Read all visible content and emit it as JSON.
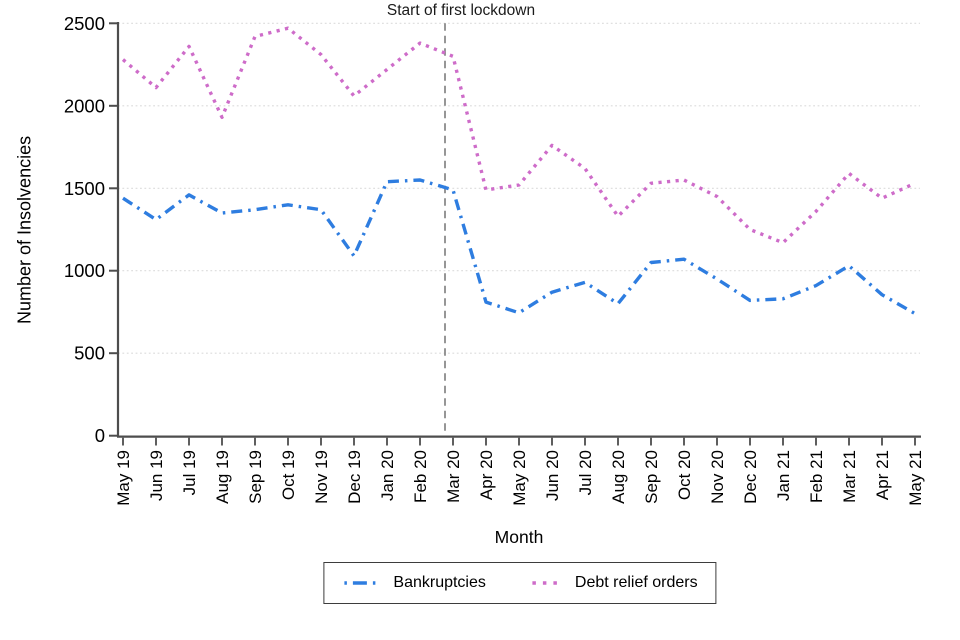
{
  "annotation": {
    "lockdown_label": "Start of first lockdown"
  },
  "axes": {
    "y_title": "Number of Insolvencies",
    "x_title": "Month"
  },
  "legend": {
    "items": [
      {
        "label": "Bankruptcies",
        "color": "#2E7DE0",
        "line_style": "dash-dot"
      },
      {
        "label": "Debt relief orders",
        "color": "#CE6CC9",
        "line_style": "dotted"
      }
    ]
  },
  "chart_data": {
    "type": "line",
    "title": "",
    "xlabel": "Month",
    "ylabel": "Number of Insolvencies",
    "ylim": [
      0,
      2500
    ],
    "y_ticks": [
      0,
      500,
      1000,
      1500,
      2000,
      2500
    ],
    "grid": "horizontal dotted gridlines",
    "legend_position": "bottom-center boxed",
    "x_categories": [
      "May 19",
      "Jun 19",
      "Jul 19",
      "Aug 19",
      "Sep 19",
      "Oct 19",
      "Nov 19",
      "Dec 19",
      "Jan 20",
      "Feb 20",
      "Mar 20",
      "Apr 20",
      "May 20",
      "Jun 20",
      "Jul 20",
      "Aug 20",
      "Sep 20",
      "Oct 20",
      "Nov 20",
      "Dec 20",
      "Jan 21",
      "Feb 21",
      "Mar 21",
      "Apr 21",
      "May 21"
    ],
    "series": [
      {
        "name": "Bankruptcies",
        "color": "#2E7DE0",
        "line_style": "dash-dot",
        "values": [
          1440,
          1310,
          1460,
          1350,
          1370,
          1400,
          1370,
          1090,
          1540,
          1550,
          1490,
          810,
          745,
          870,
          930,
          800,
          1050,
          1070,
          950,
          820,
          830,
          910,
          1030,
          855,
          740
        ]
      },
      {
        "name": "Debt relief orders",
        "color": "#CE6CC9",
        "line_style": "dotted",
        "values": [
          2280,
          2110,
          2360,
          1930,
          2420,
          2470,
          2310,
          2060,
          2220,
          2380,
          2300,
          1490,
          1520,
          1760,
          1620,
          1330,
          1530,
          1550,
          1450,
          1250,
          1170,
          1360,
          1590,
          1440,
          1530
        ]
      }
    ],
    "annotations": [
      {
        "text": "Start of first lockdown",
        "type": "vertical dashed line",
        "position": "between Feb 20 and Mar 20 (late Mar 2020)"
      }
    ]
  }
}
